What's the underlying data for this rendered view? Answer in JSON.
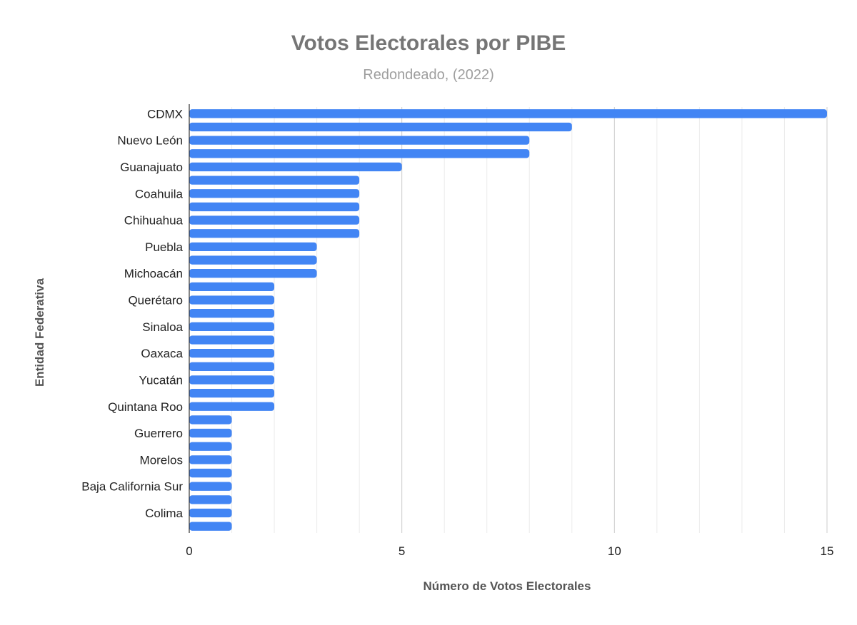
{
  "chart_data": {
    "type": "bar",
    "orientation": "horizontal",
    "title": "Votos Electorales por PIBE",
    "subtitle": "Redondeado, (2022)",
    "xlabel": "Número de Votos Electorales",
    "ylabel": "Entidad Federativa",
    "xlim": [
      0,
      15
    ],
    "xticks": [
      0,
      5,
      10,
      15
    ],
    "grid": true,
    "legend": "none",
    "bar_color": "#4285f4",
    "categories": [
      "CDMX",
      "",
      "Nuevo León",
      "",
      "Guanajuato",
      "",
      "Coahuila",
      "",
      "Chihuahua",
      "",
      "Puebla",
      "",
      "Michoacán",
      "",
      "Querétaro",
      "",
      "Sinaloa",
      "",
      "Oaxaca",
      "",
      "Yucatán",
      "",
      "Quintana Roo",
      "",
      "Guerrero",
      "",
      "Morelos",
      "",
      "Baja California Sur",
      "",
      "Colima",
      ""
    ],
    "values": [
      15,
      9,
      8,
      8,
      5,
      4,
      4,
      4,
      4,
      4,
      3,
      3,
      3,
      2,
      2,
      2,
      2,
      2,
      2,
      2,
      2,
      2,
      2,
      1,
      1,
      1,
      1,
      1,
      1,
      1,
      1,
      1
    ]
  }
}
